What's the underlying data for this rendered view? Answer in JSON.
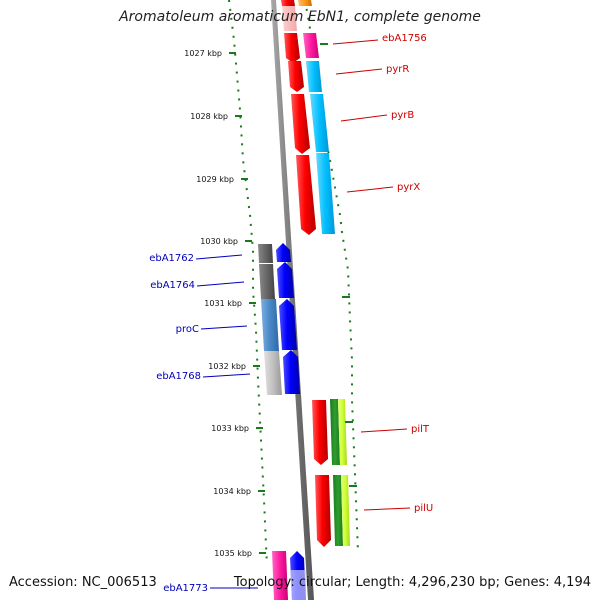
{
  "title": "Aromatoleum aromaticum EbN1, complete genome",
  "footer": {
    "accession": "Accession: NC_006513",
    "summary": "Topology: circular; Length: 4,296,230 bp; Genes: 4,194"
  },
  "ticks": [
    "1027 kbp",
    "1028 kbp",
    "1029 kbp",
    "1030 kbp",
    "1031 kbp",
    "1032 kbp",
    "1033 kbp",
    "1034 kbp",
    "1035 kbp"
  ],
  "genes_forward": [
    {
      "label": "ebA1756",
      "color": "#cc0000"
    },
    {
      "label": "pyrR",
      "color": "#cc0000"
    },
    {
      "label": "pyrB",
      "color": "#cc0000"
    },
    {
      "label": "pyrX",
      "color": "#cc0000"
    },
    {
      "label": "pilT",
      "color": "#cc0000"
    },
    {
      "label": "pilU",
      "color": "#cc0000"
    }
  ],
  "genes_reverse": [
    {
      "label": "ebA1762",
      "color": "#0000bb"
    },
    {
      "label": "ebA1764",
      "color": "#0000bb"
    },
    {
      "label": "proC",
      "color": "#0000bb"
    },
    {
      "label": "ebA1768",
      "color": "#0000bb"
    },
    {
      "label": "ebA1773",
      "color": "#0000bb"
    }
  ],
  "colors": {
    "cds": "#ff0000",
    "reverse_cds": "#0000ff",
    "backbone": "#888888",
    "gc_dots": "#1a7a1a",
    "cog_cyan": "#00bfff",
    "cog_magenta": "#ff1aa0",
    "cog_green": "#2e9e2e",
    "cog_lime": "#ccff33",
    "cog_gray": "#666666",
    "cog_steel": "#4a87c6",
    "cog_silver": "#c0c0c0"
  }
}
